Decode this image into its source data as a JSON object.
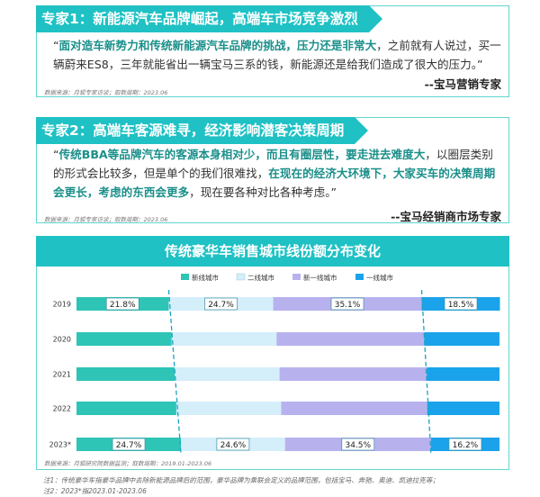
{
  "expert1": {
    "title": "专家1：新能源汽车品牌崛起，高端车市场竞争激烈",
    "quote_open": "“",
    "quote_bold": "面对造车新势力和传统新能源汽车品牌的挑战，压力还是非常大",
    "quote_rest": "，之前就有人说过，买一辆蔚来ES8，三年就能省出一辆宝马三系的钱，新能源还是给我们造成了很大的压力。”",
    "source": "数据来源：月狐专家访谈；取数周期：2023.06",
    "signature": "--宝马营销专家"
  },
  "expert2": {
    "title": "专家2：高端车客源难寻，经济影响潜客决策周期",
    "quote_open": "“",
    "quote_bold1": "传统BBA等品牌汽车的客源本身相对少，而且有圈层性，要走进去难度大",
    "quote_mid": "，以圈层类别的形式会比较多，但是单个的我们很难找，",
    "quote_bold2": "在现在的经济大环境下，大家买车的决策周期会更长，考虑的东西会更多",
    "quote_end": "，现在要各种对比各种考虑。”",
    "source": "数据来源：月狐专家访谈；取数周期：2023.06",
    "signature": "--宝马经销商市场专家"
  },
  "chart": {
    "title": "传统豪华车销售城市线份额分布变化",
    "source": "数据来源：月狐研究院数据监测；取数周期：2019.01-2023.06"
  },
  "notes": {
    "note1": "注1：传统豪华车指豪华品牌中去除新能源品牌后的范围，豪华品牌为乘联会定义的品牌范围，包括宝马、奔驰、奥迪、凯迪拉克等；",
    "note2": "注2：2023*指2023.01-2023.06"
  },
  "colors": {
    "teal_header": "#1fc1c4",
    "tier1_new": "#2ec4b6",
    "tier2": "#d4eefa",
    "tier3": "#b7b2ee",
    "tier4": "#1aa3ea"
  },
  "chart_data": {
    "type": "bar",
    "orientation": "horizontal",
    "stacked": true,
    "percent": true,
    "categories": [
      "2019",
      "2020",
      "2021",
      "2022",
      "2023*"
    ],
    "series": [
      {
        "name": "新线城市",
        "values": [
          21.8,
          22.5,
          23.2,
          23.6,
          24.7
        ],
        "labels": [
          "21.8%",
          "",
          "",
          "",
          "24.7%"
        ]
      },
      {
        "name": "二线城市",
        "values": [
          24.7,
          24.8,
          24.8,
          24.8,
          24.6
        ],
        "labels": [
          "24.7%",
          "",
          "",
          "",
          "24.6%"
        ]
      },
      {
        "name": "新一线城市",
        "values": [
          35.1,
          34.9,
          34.8,
          34.5,
          34.5
        ],
        "labels": [
          "35.1%",
          "",
          "",
          "",
          "34.5%"
        ]
      },
      {
        "name": "一线城市",
        "values": [
          18.5,
          17.8,
          17.2,
          17.1,
          16.2
        ],
        "labels": [
          "18.5%",
          "",
          "",
          "",
          "16.2%"
        ]
      }
    ],
    "legend": "top-center",
    "xlim": [
      0,
      100
    ]
  }
}
